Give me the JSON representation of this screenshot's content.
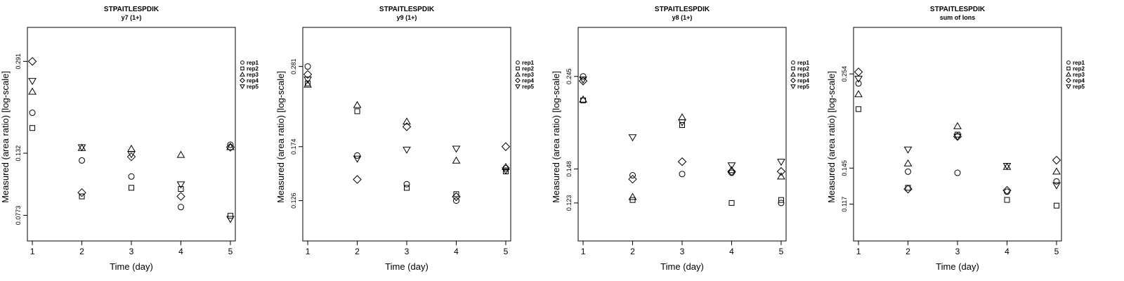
{
  "chart_data": [
    {
      "type": "scatter",
      "title": "STPAITLESPDIK",
      "subtitle": "y7 (1+)",
      "xlabel": "Time (day)",
      "ylabel": "Measured (area ratio) [log-scale]",
      "y_scale": "log",
      "x_ticks": [
        "1",
        "2",
        "3",
        "4",
        "5"
      ],
      "y_ticks": [
        {
          "value": 0.0773,
          "label": "0.0773"
        },
        {
          "value": 0.132,
          "label": "0.132"
        },
        {
          "value": 0.291,
          "label": "0.291"
        }
      ],
      "xlim": [
        0.9,
        5.1
      ],
      "ylim": [
        0.062,
        0.39
      ],
      "legend": {
        "position": "right",
        "entries": [
          "rep1",
          "rep2",
          "rep3",
          "rep4",
          "rep5"
        ]
      },
      "series": [
        {
          "name": "rep1",
          "marker": "circle",
          "x": [
            1,
            2,
            3,
            4,
            5
          ],
          "y": [
            0.187,
            0.124,
            0.108,
            0.083,
            0.142
          ]
        },
        {
          "name": "rep2",
          "marker": "square",
          "x": [
            1,
            2,
            3,
            4,
            5
          ],
          "y": [
            0.164,
            0.091,
            0.098,
            0.097,
            0.077
          ]
        },
        {
          "name": "rep3",
          "marker": "triangle-up",
          "x": [
            1,
            2,
            3,
            4,
            5
          ],
          "y": [
            0.224,
            0.138,
            0.137,
            0.13,
            0.139
          ]
        },
        {
          "name": "rep4",
          "marker": "diamond",
          "x": [
            1,
            2,
            3,
            4,
            5
          ],
          "y": [
            0.291,
            0.094,
            0.128,
            0.091,
            0.139
          ]
        },
        {
          "name": "rep5",
          "marker": "triangle-down",
          "x": [
            1,
            2,
            3,
            4,
            5
          ],
          "y": [
            0.246,
            0.139,
            0.131,
            0.101,
            0.075
          ]
        }
      ]
    },
    {
      "type": "scatter",
      "title": "STPAITLESPDIK",
      "subtitle": "y9 (1+)",
      "xlabel": "Time (day)",
      "ylabel": "Measured (area ratio) [log-scale]",
      "y_scale": "log",
      "x_ticks": [
        "1",
        "2",
        "3",
        "4",
        "5"
      ],
      "y_ticks": [
        {
          "value": 0.126,
          "label": "0.126"
        },
        {
          "value": 0.174,
          "label": "0.174"
        },
        {
          "value": 0.281,
          "label": "0.281"
        }
      ],
      "xlim": [
        0.9,
        5.1
      ],
      "ylim": [
        0.099,
        0.355
      ],
      "legend": {
        "position": "right",
        "entries": [
          "rep1",
          "rep2",
          "rep3",
          "rep4",
          "rep5"
        ]
      },
      "series": [
        {
          "name": "rep1",
          "marker": "circle",
          "x": [
            1,
            2,
            3,
            4,
            5
          ],
          "y": [
            0.281,
            0.165,
            0.139,
            0.126,
            0.153
          ]
        },
        {
          "name": "rep2",
          "marker": "square",
          "x": [
            1,
            2,
            3,
            4,
            5
          ],
          "y": [
            0.254,
            0.215,
            0.136,
            0.131,
            0.15
          ]
        },
        {
          "name": "rep3",
          "marker": "triangle-up",
          "x": [
            1,
            2,
            3,
            4,
            5
          ],
          "y": [
            0.252,
            0.223,
            0.202,
            0.16,
            0.154
          ]
        },
        {
          "name": "rep4",
          "marker": "diamond",
          "x": [
            1,
            2,
            3,
            4,
            5
          ],
          "y": [
            0.268,
            0.143,
            0.196,
            0.129,
            0.174
          ]
        },
        {
          "name": "rep5",
          "marker": "triangle-down",
          "x": [
            1,
            2,
            3,
            4,
            5
          ],
          "y": [
            0.26,
            0.162,
            0.171,
            0.172,
            0.151
          ]
        }
      ]
    },
    {
      "type": "scatter",
      "title": "STPAITLESPDIK",
      "subtitle": "y8 (1+)",
      "xlabel": "Time (day)",
      "ylabel": "Measured (area ratio) [log-scale]",
      "y_scale": "log",
      "x_ticks": [
        "1",
        "2",
        "3",
        "4",
        "5"
      ],
      "y_ticks": [
        {
          "value": 0.123,
          "label": "0.123"
        },
        {
          "value": 0.148,
          "label": "0.148"
        },
        {
          "value": 0.245,
          "label": "0.245"
        }
      ],
      "xlim": [
        0.9,
        5.1
      ],
      "ylim": [
        0.1,
        0.32
      ],
      "legend": {
        "position": "right",
        "entries": [
          "rep1",
          "rep2",
          "rep3",
          "rep4",
          "rep5"
        ]
      },
      "series": [
        {
          "name": "rep1",
          "marker": "circle",
          "x": [
            1,
            2,
            3,
            4,
            5
          ],
          "y": [
            0.245,
            0.143,
            0.144,
            0.145,
            0.123
          ]
        },
        {
          "name": "rep2",
          "marker": "square",
          "x": [
            1,
            2,
            3,
            4,
            5
          ],
          "y": [
            0.215,
            0.125,
            0.188,
            0.123,
            0.125
          ]
        },
        {
          "name": "rep3",
          "marker": "triangle-up",
          "x": [
            1,
            2,
            3,
            4,
            5
          ],
          "y": [
            0.216,
            0.127,
            0.196,
            0.147,
            0.142
          ]
        },
        {
          "name": "rep4",
          "marker": "diamond",
          "x": [
            1,
            2,
            3,
            4,
            5
          ],
          "y": [
            0.239,
            0.14,
            0.154,
            0.146,
            0.146
          ]
        },
        {
          "name": "rep5",
          "marker": "triangle-down",
          "x": [
            1,
            2,
            3,
            4,
            5
          ],
          "y": [
            0.241,
            0.176,
            0.191,
            0.151,
            0.154
          ]
        }
      ]
    },
    {
      "type": "scatter",
      "title": "STPAITLESPDIK",
      "subtitle": "sum of Ions",
      "xlabel": "Time (day)",
      "ylabel": "Measured (area ratio) [log-scale]",
      "y_scale": "log",
      "x_ticks": [
        "1",
        "2",
        "3",
        "4",
        "5"
      ],
      "y_ticks": [
        {
          "value": 0.117,
          "label": "0.117"
        },
        {
          "value": 0.145,
          "label": "0.145"
        },
        {
          "value": 0.254,
          "label": "0.254"
        }
      ],
      "xlim": [
        0.9,
        5.1
      ],
      "ylim": [
        0.094,
        0.335
      ],
      "legend": {
        "position": "right",
        "entries": [
          "rep1",
          "rep2",
          "rep3",
          "rep4",
          "rep5"
        ]
      },
      "series": [
        {
          "name": "rep1",
          "marker": "circle",
          "x": [
            1,
            2,
            3,
            4,
            5
          ],
          "y": [
            0.24,
            0.142,
            0.141,
            0.126,
            0.134
          ]
        },
        {
          "name": "rep2",
          "marker": "square",
          "x": [
            1,
            2,
            3,
            4,
            5
          ],
          "y": [
            0.206,
            0.129,
            0.177,
            0.12,
            0.116
          ]
        },
        {
          "name": "rep3",
          "marker": "triangle-up",
          "x": [
            1,
            2,
            3,
            4,
            5
          ],
          "y": [
            0.225,
            0.149,
            0.186,
            0.146,
            0.142
          ]
        },
        {
          "name": "rep4",
          "marker": "diamond",
          "x": [
            1,
            2,
            3,
            4,
            5
          ],
          "y": [
            0.257,
            0.128,
            0.175,
            0.127,
            0.152
          ]
        },
        {
          "name": "rep5",
          "marker": "triangle-down",
          "x": [
            1,
            2,
            3,
            4,
            5
          ],
          "y": [
            0.247,
            0.162,
            0.175,
            0.147,
            0.131
          ]
        }
      ]
    }
  ]
}
